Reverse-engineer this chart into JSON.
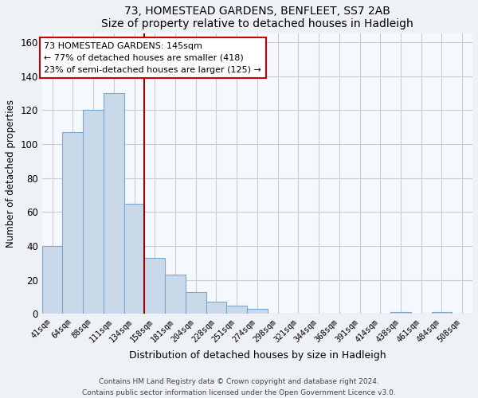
{
  "title": "73, HOMESTEAD GARDENS, BENFLEET, SS7 2AB",
  "subtitle": "Size of property relative to detached houses in Hadleigh",
  "xlabel": "Distribution of detached houses by size in Hadleigh",
  "ylabel": "Number of detached properties",
  "bar_labels": [
    "41sqm",
    "64sqm",
    "88sqm",
    "111sqm",
    "134sqm",
    "158sqm",
    "181sqm",
    "204sqm",
    "228sqm",
    "251sqm",
    "274sqm",
    "298sqm",
    "321sqm",
    "344sqm",
    "368sqm",
    "391sqm",
    "414sqm",
    "438sqm",
    "461sqm",
    "484sqm",
    "508sqm"
  ],
  "bar_heights": [
    40,
    107,
    120,
    130,
    65,
    33,
    23,
    13,
    7,
    5,
    3,
    0,
    0,
    0,
    0,
    0,
    0,
    1,
    0,
    1,
    0
  ],
  "bar_color": "#c9d9ea",
  "bar_edge_color": "#7aa8cc",
  "vline_x": 4.5,
  "vline_color": "#990000",
  "annotation_line1": "73 HOMESTEAD GARDENS: 145sqm",
  "annotation_line2": "← 77% of detached houses are smaller (418)",
  "annotation_line3": "23% of semi-detached houses are larger (125) →",
  "annotation_box_color": "#ffffff",
  "annotation_box_edge": "#cc0000",
  "ylim": [
    0,
    165
  ],
  "yticks": [
    0,
    20,
    40,
    60,
    80,
    100,
    120,
    140,
    160
  ],
  "footer_line1": "Contains HM Land Registry data © Crown copyright and database right 2024.",
  "footer_line2": "Contains public sector information licensed under the Open Government Licence v3.0.",
  "bg_color": "#eef2f6",
  "plot_bg_color": "#f5f8fc",
  "grid_color": "#c8cdd4"
}
